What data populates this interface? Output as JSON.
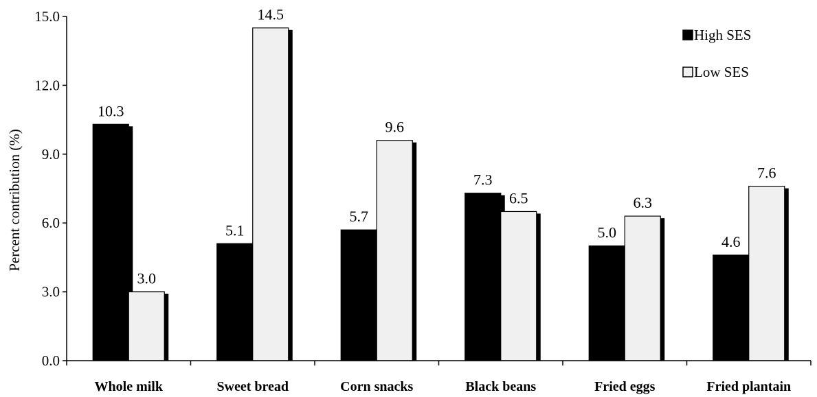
{
  "chart_data": {
    "type": "bar",
    "categories": [
      "Whole milk",
      "Sweet bread",
      "Corn snacks",
      "Black beans",
      "Fried eggs",
      "Fried plantain"
    ],
    "series": [
      {
        "name": "High SES",
        "values": [
          10.3,
          5.1,
          5.7,
          7.3,
          5.0,
          4.6
        ],
        "color": "#000000"
      },
      {
        "name": "Low SES",
        "values": [
          3.0,
          14.5,
          9.6,
          6.5,
          6.3,
          7.6
        ],
        "color": "#f0f0f0"
      }
    ],
    "data_labels": {
      "High SES": [
        "10.3",
        "5.1",
        "5.7",
        "7.3",
        "5.0",
        "4.6"
      ],
      "Low SES": [
        "3.0",
        "14.5",
        "9.6",
        "6.5",
        "6.3",
        "7.6"
      ]
    },
    "ylabel": "Percent contribution (%)",
    "xlabel": "",
    "ylim": [
      0,
      15
    ],
    "yticks": [
      "0.0",
      "3.0",
      "6.0",
      "9.0",
      "12.0",
      "15.0"
    ],
    "grid": false,
    "legend": {
      "position": "top-right",
      "entries": [
        "High SES",
        "Low SES"
      ]
    },
    "shadow_color": "#000000"
  }
}
